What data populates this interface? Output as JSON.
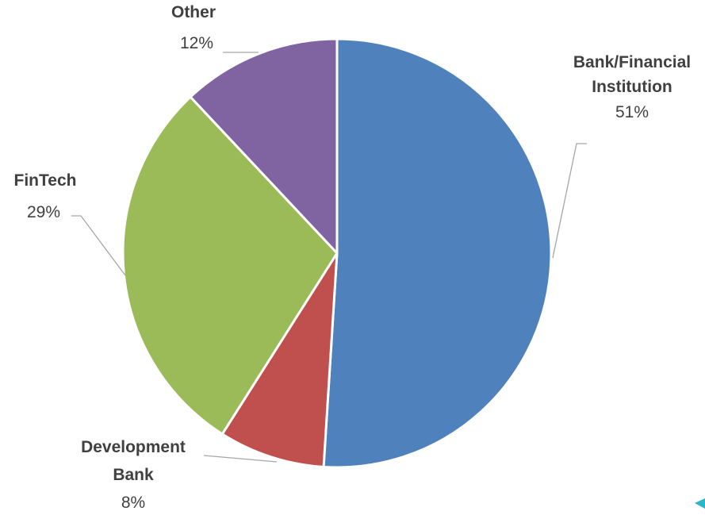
{
  "chart_data": {
    "type": "pie",
    "slices": [
      {
        "label": "Bank/Financial Institution",
        "value": 51,
        "display": "51%",
        "color": "#4f81bd"
      },
      {
        "label": "Development Bank",
        "value": 8,
        "display": "8%",
        "color": "#c0504d"
      },
      {
        "label": "FinTech",
        "value": 29,
        "display": "29%",
        "color": "#9bbb59"
      },
      {
        "label": "Other",
        "value": 12,
        "display": "12%",
        "color": "#8064a2"
      }
    ],
    "start_angle": "12 o'clock",
    "direction": "clockwise",
    "legend": "none",
    "data_labels": "outside with leader lines"
  },
  "labels": {
    "bank_line1": "Bank/Financial",
    "bank_line2": "Institution",
    "dev_line1": "Development",
    "dev_line2": "Bank",
    "fintech": "FinTech",
    "other": "Other"
  },
  "decor": {
    "corner_marker_color": "#2bb5c8"
  }
}
